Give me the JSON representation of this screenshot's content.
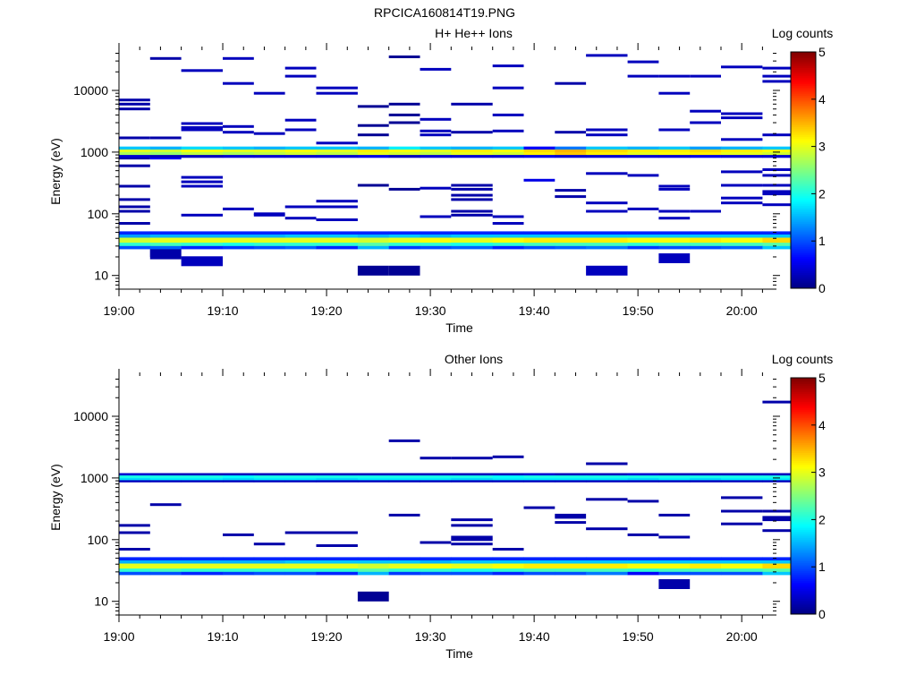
{
  "figure_title": "RPCICA160814T19.PNG",
  "colormap": [
    "#000080",
    "#0000ff",
    "#0080ff",
    "#00ffff",
    "#80ff80",
    "#ffff00",
    "#ff8000",
    "#ff0000",
    "#800000"
  ],
  "chart_data": [
    {
      "type": "heatmap",
      "title": "H+ He++ Ions",
      "xlabel": "Time",
      "ylabel": "Energy (eV)",
      "yscale": "log",
      "ylim": [
        6,
        45000
      ],
      "xlim": [
        "19:00",
        "20:03"
      ],
      "x_ticks": [
        "19:00",
        "19:10",
        "19:20",
        "19:30",
        "19:40",
        "19:50",
        "20:00"
      ],
      "y_ticks": [
        "10",
        "100",
        "1000",
        "10000"
      ],
      "colorbar": {
        "label": "Log counts",
        "range": [
          0,
          5
        ],
        "ticks": [
          "0",
          "1",
          "2",
          "3",
          "4",
          "5"
        ]
      },
      "time_bins": [
        "19:00",
        "19:03",
        "19:06",
        "19:10",
        "19:13",
        "19:16",
        "19:19",
        "19:23",
        "19:26",
        "19:29",
        "19:32",
        "19:36",
        "19:39",
        "19:42",
        "19:45",
        "19:49",
        "19:52",
        "19:55",
        "19:58",
        "20:02"
      ],
      "sparse_cells": [
        {
          "bin": "19:00",
          "energy_eV": [
            7000,
            6000,
            5000,
            1700,
            800,
            600,
            280,
            170,
            130,
            110,
            70
          ],
          "log_counts": 0.2
        },
        {
          "bin": "19:03",
          "energy_eV": [
            33000,
            1700,
            24,
            22
          ],
          "log_counts": 0.2
        },
        {
          "bin": "19:03",
          "energy_eV": [
            800
          ],
          "log_counts": 0.6
        },
        {
          "bin": "19:06",
          "energy_eV": [
            21000,
            2900,
            2500,
            2300,
            390,
            330,
            280,
            95,
            17
          ],
          "log_counts": 0.3
        },
        {
          "bin": "19:10",
          "energy_eV": [
            33000,
            13000,
            2600,
            2100,
            120
          ],
          "log_counts": 0.3
        },
        {
          "bin": "19:13",
          "energy_eV": [
            9000,
            2000,
            100,
            95
          ],
          "log_counts": 0.3
        },
        {
          "bin": "19:16",
          "energy_eV": [
            23000,
            17000,
            3300,
            2300,
            130,
            85
          ],
          "log_counts": 0.3
        },
        {
          "bin": "19:19",
          "energy_eV": [
            11000,
            9000,
            1400,
            160,
            130,
            80
          ],
          "log_counts": 0.3
        },
        {
          "bin": "19:23",
          "energy_eV": [
            5500,
            2700,
            1900,
            290,
            12
          ],
          "log_counts": 0.1
        },
        {
          "bin": "19:26",
          "energy_eV": [
            35000,
            6000,
            4000,
            3000,
            250,
            12
          ],
          "log_counts": 0.1
        },
        {
          "bin": "19:29",
          "energy_eV": [
            22000,
            3400,
            2200,
            1900,
            260,
            90
          ],
          "log_counts": 0.3
        },
        {
          "bin": "19:32",
          "energy_eV": [
            6000,
            2100,
            290,
            250,
            200,
            170,
            110,
            95
          ],
          "log_counts": 0.2
        },
        {
          "bin": "19:36",
          "energy_eV": [
            25000,
            11000,
            4000,
            2200,
            90,
            70
          ],
          "log_counts": 0.3
        },
        {
          "bin": "19:39",
          "energy_eV": [
            350
          ],
          "log_counts": 0.5
        },
        {
          "bin": "19:42",
          "energy_eV": [
            13000,
            2100,
            240,
            190
          ],
          "log_counts": 0.2
        },
        {
          "bin": "19:45",
          "energy_eV": [
            37000,
            2300,
            1900,
            450,
            150,
            110,
            12
          ],
          "log_counts": 0.3
        },
        {
          "bin": "19:49",
          "energy_eV": [
            29000,
            17000,
            420,
            120
          ],
          "log_counts": 0.3
        },
        {
          "bin": "19:52",
          "energy_eV": [
            17000,
            9000,
            2300,
            280,
            250,
            110,
            85,
            19
          ],
          "log_counts": 0.3
        },
        {
          "bin": "19:55",
          "energy_eV": [
            17000,
            4600,
            3000,
            110
          ],
          "log_counts": 0.3
        },
        {
          "bin": "19:58",
          "energy_eV": [
            24000,
            4200,
            3600,
            1600,
            480,
            290,
            180,
            150
          ],
          "log_counts": 0.3
        },
        {
          "bin": "20:02",
          "energy_eV": [
            23000,
            17000,
            14000,
            1900,
            520,
            420,
            290,
            230,
            210,
            140
          ],
          "log_counts": 0.3
        }
      ],
      "bands": [
        {
          "e_low": 1100,
          "e_high": 1230,
          "log_counts": [
            1.6,
            1.5,
            1.7,
            1.6,
            1.5,
            1.6,
            1.6,
            1.5,
            1.8,
            1.6,
            1.5,
            1.6,
            0.6,
            1.2,
            1.6,
            1.5,
            1.6,
            1.4,
            1.5,
            1.6
          ]
        },
        {
          "e_low": 1000,
          "e_high": 1100,
          "log_counts": [
            3.0,
            2.9,
            3.1,
            3.0,
            3.0,
            3.1,
            3.0,
            3.2,
            3.1,
            3.0,
            3.2,
            3.1,
            3.3,
            3.5,
            3.3,
            3.2,
            3.2,
            3.3,
            3.2,
            3.1
          ]
        },
        {
          "e_low": 900,
          "e_high": 1000,
          "log_counts": [
            2.7,
            2.6,
            2.8,
            2.7,
            2.8,
            2.9,
            2.8,
            3.0,
            2.9,
            2.8,
            3.0,
            2.9,
            3.2,
            3.4,
            3.2,
            3.0,
            3.1,
            3.2,
            3.0,
            2.9
          ]
        },
        {
          "e_low": 820,
          "e_high": 900,
          "log_counts": [
            0.4,
            0.3,
            0.3,
            0.4,
            0.4,
            0.4,
            0.4,
            0.5,
            0.3,
            0.4,
            0.4,
            0.4,
            0.5,
            0.4,
            0.4,
            0.4,
            0.4,
            0.5,
            0.4,
            0.4
          ]
        },
        {
          "e_low": 46,
          "e_high": 52,
          "log_counts": [
            0.8,
            0.8,
            0.8,
            0.8,
            0.8,
            0.8,
            0.8,
            0.8,
            0.8,
            0.8,
            0.8,
            0.8,
            0.8,
            0.8,
            0.8,
            0.8,
            0.8,
            0.8,
            0.8,
            0.8
          ]
        },
        {
          "e_low": 41,
          "e_high": 46,
          "log_counts": [
            1.4,
            1.5,
            1.5,
            1.5,
            1.5,
            1.6,
            1.6,
            1.5,
            1.6,
            1.5,
            1.6,
            1.6,
            1.6,
            1.6,
            1.6,
            1.6,
            1.6,
            1.6,
            1.6,
            1.6
          ]
        },
        {
          "e_low": 34,
          "e_high": 41,
          "log_counts": [
            2.9,
            3.0,
            3.0,
            3.0,
            3.0,
            3.0,
            3.0,
            2.9,
            3.0,
            3.1,
            3.0,
            3.1,
            3.2,
            3.2,
            3.2,
            3.1,
            3.1,
            3.2,
            3.1,
            3.3
          ]
        },
        {
          "e_low": 30,
          "e_high": 34,
          "log_counts": [
            2.1,
            2.2,
            2.1,
            2.0,
            2.1,
            2.1,
            2.1,
            2.3,
            2.1,
            2.1,
            2.0,
            2.1,
            2.2,
            2.2,
            2.2,
            2.1,
            2.2,
            2.2,
            2.2,
            2.3
          ]
        },
        {
          "e_low": 27,
          "e_high": 30,
          "log_counts": [
            1.0,
            1.1,
            0.8,
            0.9,
            1.0,
            1.1,
            0.8,
            1.5,
            0.9,
            1.0,
            1.1,
            0.8,
            1.0,
            1.1,
            1.2,
            0.9,
            1.0,
            1.0,
            1.1,
            1.6
          ]
        }
      ]
    },
    {
      "type": "heatmap",
      "title": "Other Ions",
      "xlabel": "Time",
      "ylabel": "Energy (eV)",
      "yscale": "log",
      "ylim": [
        6,
        45000
      ],
      "xlim": [
        "19:00",
        "20:03"
      ],
      "x_ticks": [
        "19:00",
        "19:10",
        "19:20",
        "19:30",
        "19:40",
        "19:50",
        "20:00"
      ],
      "y_ticks": [
        "10",
        "100",
        "1000",
        "10000"
      ],
      "colorbar": {
        "label": "Log counts",
        "range": [
          0,
          5
        ],
        "ticks": [
          "0",
          "1",
          "2",
          "3",
          "4",
          "5"
        ]
      },
      "time_bins": [
        "19:00",
        "19:03",
        "19:06",
        "19:10",
        "19:13",
        "19:16",
        "19:19",
        "19:23",
        "19:26",
        "19:29",
        "19:32",
        "19:36",
        "19:39",
        "19:42",
        "19:45",
        "19:49",
        "19:52",
        "19:55",
        "19:58",
        "20:02"
      ],
      "sparse_cells": [
        {
          "bin": "19:00",
          "energy_eV": [
            170,
            130,
            70
          ],
          "log_counts": 0.2
        },
        {
          "bin": "19:03",
          "energy_eV": [
            370
          ],
          "log_counts": 0.2
        },
        {
          "bin": "19:10",
          "energy_eV": [
            120
          ],
          "log_counts": 0.2
        },
        {
          "bin": "19:13",
          "energy_eV": [
            85
          ],
          "log_counts": 0.2
        },
        {
          "bin": "19:16",
          "energy_eV": [
            130
          ],
          "log_counts": 0.2
        },
        {
          "bin": "19:19",
          "energy_eV": [
            130,
            80
          ],
          "log_counts": 0.2
        },
        {
          "bin": "19:23",
          "energy_eV": [
            12
          ],
          "log_counts": 0.1
        },
        {
          "bin": "19:26",
          "energy_eV": [
            4000,
            250
          ],
          "log_counts": 0.2
        },
        {
          "bin": "19:29",
          "energy_eV": [
            2100,
            90
          ],
          "log_counts": 0.2
        },
        {
          "bin": "19:32",
          "energy_eV": [
            2100,
            210,
            170,
            110,
            100,
            85
          ],
          "log_counts": 0.2
        },
        {
          "bin": "19:36",
          "energy_eV": [
            2200,
            70
          ],
          "log_counts": 0.2
        },
        {
          "bin": "19:39",
          "energy_eV": [
            330
          ],
          "log_counts": 0.2
        },
        {
          "bin": "19:42",
          "energy_eV": [
            250,
            230,
            190
          ],
          "log_counts": 0.2
        },
        {
          "bin": "19:45",
          "energy_eV": [
            1700,
            450,
            150
          ],
          "log_counts": 0.2
        },
        {
          "bin": "19:49",
          "energy_eV": [
            420,
            120
          ],
          "log_counts": 0.2
        },
        {
          "bin": "19:52",
          "energy_eV": [
            250,
            110,
            19
          ],
          "log_counts": 0.2
        },
        {
          "bin": "19:58",
          "energy_eV": [
            480,
            290,
            180
          ],
          "log_counts": 0.2
        },
        {
          "bin": "20:02",
          "energy_eV": [
            17000,
            290,
            230,
            210,
            140
          ],
          "log_counts": 0.2
        }
      ],
      "bands": [
        {
          "e_low": 1100,
          "e_high": 1200,
          "log_counts": [
            0.4,
            0.3,
            0.3,
            0.3,
            0.3,
            0.3,
            0.3,
            0.3,
            0.3,
            0.3,
            0.3,
            0.3,
            0.4,
            0.3,
            0.3,
            0.4,
            0.3,
            0.3,
            0.3,
            0.3
          ]
        },
        {
          "e_low": 1000,
          "e_high": 1100,
          "log_counts": [
            2.0,
            2.0,
            2.0,
            1.9,
            2.0,
            2.0,
            2.0,
            2.0,
            2.0,
            2.0,
            2.0,
            1.9,
            2.0,
            2.0,
            2.0,
            2.0,
            2.0,
            2.0,
            2.0,
            2.0
          ]
        },
        {
          "e_low": 920,
          "e_high": 1000,
          "log_counts": [
            1.7,
            1.8,
            1.8,
            1.7,
            1.8,
            1.8,
            1.7,
            1.8,
            1.8,
            1.8,
            1.7,
            1.8,
            1.8,
            1.8,
            1.8,
            1.7,
            1.8,
            1.7,
            1.8,
            1.8
          ]
        },
        {
          "e_low": 860,
          "e_high": 920,
          "log_counts": [
            0.3,
            0.3,
            0.3,
            0.3,
            0.3,
            0.3,
            0.3,
            0.3,
            0.3,
            0.3,
            0.3,
            0.3,
            0.3,
            0.3,
            0.3,
            0.3,
            0.3,
            0.3,
            0.3,
            0.3
          ]
        },
        {
          "e_low": 46,
          "e_high": 52,
          "log_counts": [
            0.8,
            0.8,
            0.8,
            0.8,
            0.8,
            0.8,
            0.8,
            0.8,
            0.8,
            0.8,
            0.8,
            0.8,
            0.8,
            0.8,
            0.8,
            0.8,
            0.8,
            0.8,
            0.8,
            0.8
          ]
        },
        {
          "e_low": 41,
          "e_high": 46,
          "log_counts": [
            1.5,
            1.5,
            1.5,
            1.5,
            1.5,
            1.6,
            1.6,
            1.6,
            1.6,
            1.5,
            1.6,
            1.6,
            1.6,
            1.6,
            1.6,
            1.6,
            1.6,
            1.6,
            1.6,
            1.6
          ]
        },
        {
          "e_low": 34,
          "e_high": 41,
          "log_counts": [
            3.0,
            3.0,
            3.0,
            3.0,
            3.0,
            3.0,
            3.0,
            2.9,
            3.0,
            3.1,
            3.0,
            3.1,
            3.2,
            3.2,
            3.2,
            3.1,
            3.1,
            3.2,
            3.1,
            3.3
          ]
        },
        {
          "e_low": 30,
          "e_high": 34,
          "log_counts": [
            2.1,
            2.2,
            2.1,
            2.1,
            2.1,
            2.1,
            2.1,
            2.3,
            2.1,
            2.1,
            2.0,
            2.1,
            2.2,
            2.2,
            2.2,
            2.1,
            2.2,
            2.2,
            2.2,
            2.3
          ]
        },
        {
          "e_low": 27,
          "e_high": 30,
          "log_counts": [
            1.0,
            1.0,
            0.8,
            0.9,
            1.0,
            1.0,
            0.8,
            1.5,
            0.9,
            1.0,
            1.0,
            0.8,
            1.0,
            1.0,
            1.2,
            0.6,
            1.0,
            1.0,
            1.0,
            1.6
          ]
        }
      ]
    }
  ]
}
